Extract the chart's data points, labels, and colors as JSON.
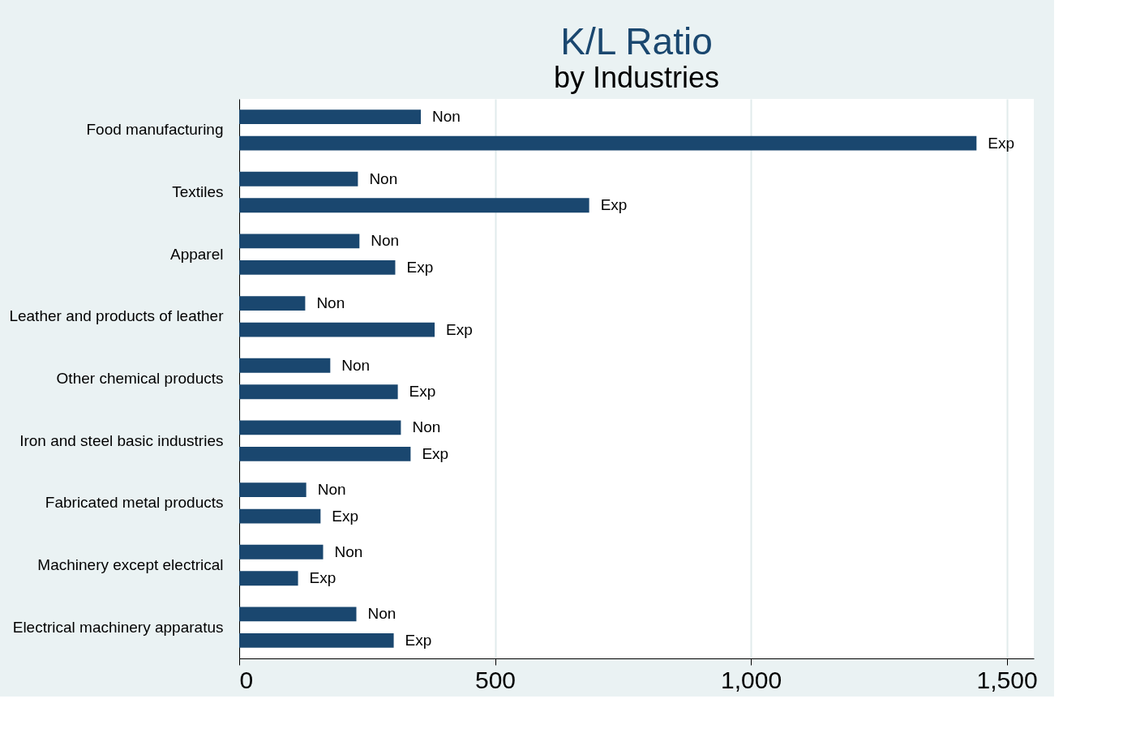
{
  "chart_data": {
    "type": "bar",
    "orientation": "horizontal",
    "title": "K/L Ratio",
    "subtitle": "by Industries",
    "categories": [
      "Food manufacturing",
      "Textiles",
      "Apparel",
      "Leather and products of leather",
      "Other chemical products",
      "Iron and steel basic industries",
      "Fabricated metal products",
      "Machinery except electrical",
      "Electrical machinery apparatus"
    ],
    "series": [
      {
        "name": "Non",
        "color": "#1a476f",
        "values": [
          355,
          232,
          235,
          129,
          178,
          316,
          131,
          164,
          229
        ]
      },
      {
        "name": "Exp",
        "color": "#1a476f",
        "values": [
          1441,
          684,
          305,
          382,
          310,
          335,
          159,
          115,
          302
        ]
      }
    ],
    "xlim": [
      0,
      1553
    ],
    "xticks": [
      0,
      {
        "value": 500,
        "label": "500"
      },
      {
        "value": 1000,
        "label": "1,000"
      },
      {
        "value": 1500,
        "label": "1,500"
      }
    ],
    "grid": "x",
    "legend": false
  }
}
